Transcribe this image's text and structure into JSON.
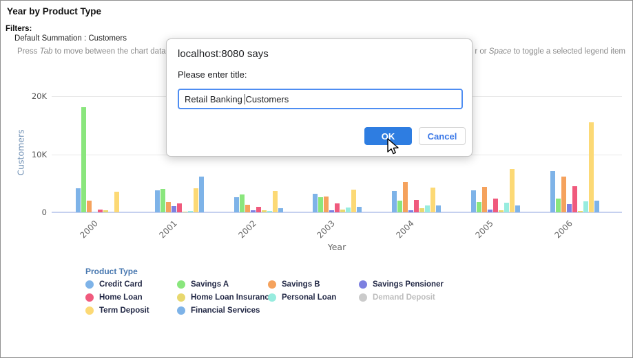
{
  "header": {
    "title": "Year by Product Type",
    "filters_label": "Filters:",
    "filters_value": "Default Summation : Customers",
    "instructions_left": {
      "p1": "Press ",
      "p2": "Tab",
      "p3": " to move between the chart data, le"
    },
    "instructions_right": {
      "p1": "r or ",
      "p2": "Space",
      "p3": " to toggle a selected legend item"
    }
  },
  "dialog": {
    "title": "localhost:8080 says",
    "message": "Please enter title:",
    "input": {
      "value": "Retail Banking Customers",
      "before_caret": "Retail Banking ",
      "after_caret": "Customers"
    },
    "ok_label": "OK",
    "cancel_label": "Cancel",
    "accent_color": "#2e7de1"
  },
  "chart_data": {
    "type": "bar",
    "title": "Year by Product Type",
    "xlabel": "Year",
    "ylabel": "Customers",
    "categories": [
      "2000",
      "2001",
      "2002",
      "2003",
      "2004",
      "2005",
      "2006"
    ],
    "ylim": [
      0,
      20000
    ],
    "yticks": [
      {
        "label": "0",
        "value": 0
      },
      {
        "label": "10K",
        "value": 10000
      },
      {
        "label": "20K",
        "value": 20000
      }
    ],
    "grid": "horizontal",
    "legend_position": "bottom",
    "legend_title": "Product Type",
    "series": [
      {
        "name": "Credit Card",
        "color": "#7eb3e8",
        "values": [
          4200,
          3800,
          2600,
          3200,
          3700,
          3800,
          7100
        ]
      },
      {
        "name": "Savings A",
        "color": "#8ae67d",
        "values": [
          18100,
          4000,
          3100,
          2600,
          2000,
          1800,
          2400
        ]
      },
      {
        "name": "Savings B",
        "color": "#f5a25d",
        "values": [
          2000,
          1800,
          1300,
          2700,
          5200,
          4400,
          6100
        ]
      },
      {
        "name": "Savings Pensioner",
        "color": "#7d80e0",
        "values": [
          0,
          1100,
          400,
          300,
          300,
          500,
          1400
        ]
      },
      {
        "name": "Home Loan",
        "color": "#f05a7d",
        "values": [
          450,
          1500,
          1000,
          1500,
          2100,
          2400,
          4500
        ]
      },
      {
        "name": "Home Loan Insurance",
        "color": "#e8d86e",
        "values": [
          300,
          150,
          300,
          500,
          700,
          400,
          200
        ]
      },
      {
        "name": "Personal Loan",
        "color": "#97ecdf",
        "values": [
          0,
          200,
          250,
          800,
          1200,
          1700,
          1900
        ]
      },
      {
        "name": "Term Deposit",
        "color": "#fcd975",
        "values": [
          3600,
          4200,
          3700,
          3900,
          4300,
          7500,
          15500
        ]
      },
      {
        "name": "Financial Services",
        "color": "#7eb3e8",
        "values": [
          0,
          6200,
          700,
          1000,
          1200,
          1200,
          2000
        ]
      }
    ],
    "legend_items": [
      {
        "name": "Credit Card",
        "color": "#7eb3e8",
        "disabled": false
      },
      {
        "name": "Savings A",
        "color": "#8ae67d",
        "disabled": false
      },
      {
        "name": "Savings B",
        "color": "#f5a25d",
        "disabled": false
      },
      {
        "name": "Savings Pensioner",
        "color": "#7d80e0",
        "disabled": false
      },
      {
        "name": "Home Loan",
        "color": "#f05a7d",
        "disabled": false
      },
      {
        "name": "Home Loan Insurance",
        "color": "#e8d86e",
        "disabled": false
      },
      {
        "name": "Personal Loan",
        "color": "#97ecdf",
        "disabled": false
      },
      {
        "name": "Demand Deposit",
        "color": "#cbcbcb",
        "disabled": true
      },
      {
        "name": "Term Deposit",
        "color": "#fcd975",
        "disabled": false
      },
      {
        "name": "Financial Services",
        "color": "#7eb3e8",
        "disabled": false
      }
    ]
  }
}
